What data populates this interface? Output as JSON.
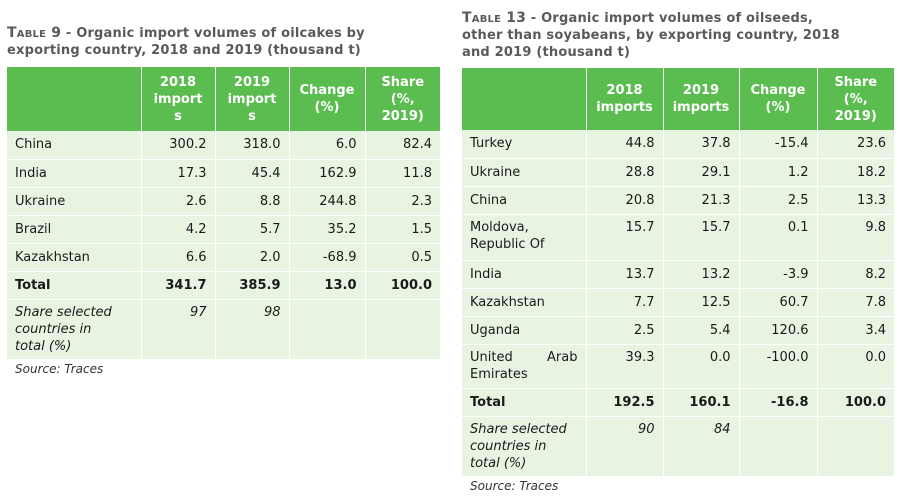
{
  "table9": {
    "caption_label": "Table 9",
    "caption_text": " - Organic import volumes of oilcakes by exporting country, 2018 and 2019 (thousand t)",
    "caption_line1": " - Organic import volumes of oilcakes by",
    "caption_line2": "exporting country, 2018 and 2019 (thousand t)",
    "headers": {
      "country": "",
      "imports_2018_a": "2018",
      "imports_2018_b": "import",
      "imports_2018_c": "s",
      "imports_2019_a": "2019",
      "imports_2019_b": "import",
      "imports_2019_c": "s",
      "change_a": "Change",
      "change_b": "(%)",
      "share_a": "Share",
      "share_b": "(%,",
      "share_c": "2019)"
    },
    "rows": [
      {
        "country": "China",
        "y2018": "300.2",
        "y2019": "318.0",
        "change": "6.0",
        "share": "82.4"
      },
      {
        "country": "India",
        "y2018": "17.3",
        "y2019": "45.4",
        "change": "162.9",
        "share": "11.8"
      },
      {
        "country": "Ukraine",
        "y2018": "2.6",
        "y2019": "8.8",
        "change": "244.8",
        "share": "2.3"
      },
      {
        "country": "Brazil",
        "y2018": "4.2",
        "y2019": "5.7",
        "change": "35.2",
        "share": "1.5"
      },
      {
        "country": "Kazakhstan",
        "y2018": "6.6",
        "y2019": "2.0",
        "change": "-68.9",
        "share": "0.5"
      }
    ],
    "total": {
      "label": "Total",
      "y2018": "341.7",
      "y2019": "385.9",
      "change": "13.0",
      "share": "100.0"
    },
    "share_selected": {
      "label_1": "Share selected",
      "label_2": "countries in",
      "label_3": "total (%)",
      "y2018": "97",
      "y2019": "98"
    },
    "source": "Source: Traces"
  },
  "table13": {
    "caption_label": "Table 13",
    "caption_line1": " - Organic import volumes of oilseeds,",
    "caption_line2": "other than soyabeans, by exporting country, 2018",
    "caption_line3": "and 2019 (thousand t)",
    "headers": {
      "imports_2018_a": "2018",
      "imports_2018_b": "imports",
      "imports_2019_a": "2019",
      "imports_2019_b": "imports",
      "change_a": "Change",
      "change_b": "(%)",
      "share_a": "Share",
      "share_b": "(%,",
      "share_c": "2019)"
    },
    "rows": [
      {
        "country": "Turkey",
        "y2018": "44.8",
        "y2019": "37.8",
        "change": "-15.4",
        "share": "23.6"
      },
      {
        "country": "Ukraine",
        "y2018": "28.8",
        "y2019": "29.1",
        "change": "1.2",
        "share": "18.2"
      },
      {
        "country": "China",
        "y2018": "20.8",
        "y2019": "21.3",
        "change": "2.5",
        "share": "13.3"
      },
      {
        "country_1": "Moldova,",
        "country_2": "Republic Of",
        "y2018": "15.7",
        "y2019": "15.7",
        "change": "0.1",
        "share": "9.8"
      },
      {
        "country": "India",
        "y2018": "13.7",
        "y2019": "13.2",
        "change": "-3.9",
        "share": "8.2"
      },
      {
        "country": "Kazakhstan",
        "y2018": "7.7",
        "y2019": "12.5",
        "change": "60.7",
        "share": "7.8"
      },
      {
        "country": "Uganda",
        "y2018": "2.5",
        "y2019": "5.4",
        "change": "120.6",
        "share": "3.4"
      },
      {
        "country_1": "United Arab",
        "country_2": "Emirates",
        "y2018": "39.3",
        "y2019": "0.0",
        "change": "-100.0",
        "share": "0.0"
      }
    ],
    "total": {
      "label": "Total",
      "y2018": "192.5",
      "y2019": "160.1",
      "change": "-16.8",
      "share": "100.0"
    },
    "share_selected": {
      "label_1": "Share selected",
      "label_2": "countries in",
      "label_3": "total (%)",
      "y2018": "90",
      "y2019": "84"
    },
    "source": "Source: Traces"
  },
  "colors": {
    "header_bg": "#5bbd4f",
    "cell_bg": "#e7f4e2",
    "caption": "#5a5a5a"
  }
}
